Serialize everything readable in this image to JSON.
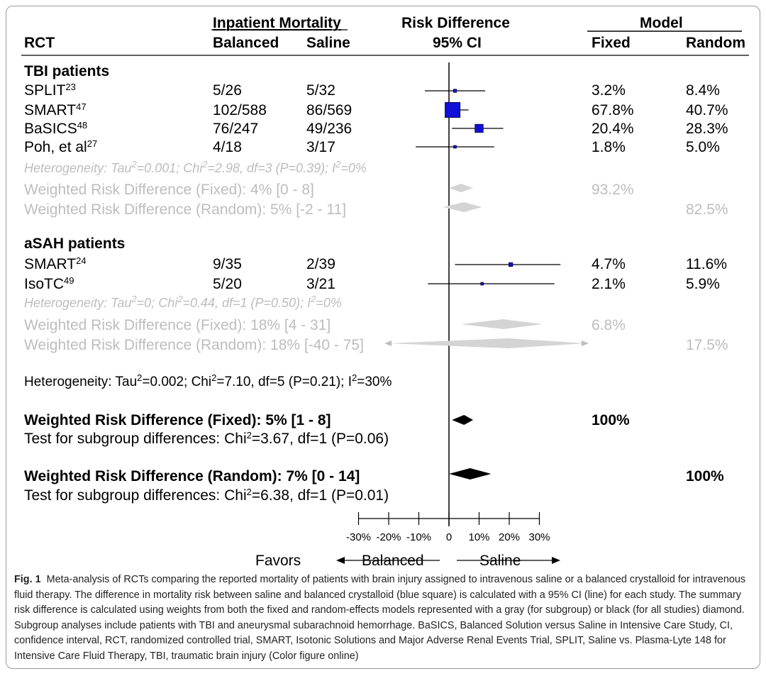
{
  "header": {
    "group_left": "Inpatient Mortality",
    "group_mid": "Risk Difference",
    "group_right": "Model",
    "col_rct": "RCT",
    "col_balanced": "Balanced",
    "col_saline": "Saline",
    "col_ci": "95% CI",
    "col_fixed": "Fixed",
    "col_random": "Random"
  },
  "groups": [
    {
      "title": "TBI patients",
      "heterogeneity": {
        "pre": "Heterogeneity: Tau",
        "s1": "2",
        "m1": "=0.001; Chi",
        "s2": "2",
        "m2": "=2.98, df=3 (P=0.39); I",
        "s3": "2",
        "end": "=0%"
      },
      "fixed_label": "Weighted Risk Difference (Fixed): 4% [0 - 8]",
      "fixed_weight": "93.2%",
      "random_label": "Weighted Risk Difference (Random): 5% [-2 - 11]",
      "random_weight": "82.5%"
    },
    {
      "title": "aSAH patients",
      "heterogeneity": {
        "pre": "Heterogeneity: Tau",
        "s1": "2",
        "m1": "=0; Chi",
        "s2": "2",
        "m2": "=0.44, df=1 (P=0.50); I",
        "s3": "2",
        "end": "=0%"
      },
      "fixed_label": "Weighted Risk Difference (Fixed): 18% [4 - 31]",
      "fixed_weight": "6.8%",
      "random_label": "Weighted Risk Difference (Random): 18% [-40 - 75]",
      "random_weight": "17.5%"
    }
  ],
  "studies": [
    {
      "name": "SPLIT",
      "ref": "23",
      "balanced": "5/26",
      "saline": "5/32",
      "fixed": "3.2%",
      "random": "8.4%"
    },
    {
      "name": "SMART",
      "ref": "47",
      "balanced": "102/588",
      "saline": "86/569",
      "fixed": "67.8%",
      "random": "40.7%"
    },
    {
      "name": "BaSICS",
      "ref": "48",
      "balanced": "76/247",
      "saline": "49/236",
      "fixed": "20.4%",
      "random": "28.3%"
    },
    {
      "name": "Poh, et al",
      "ref": "27",
      "balanced": "4/18",
      "saline": "3/17",
      "fixed": "1.8%",
      "random": "5.0%"
    },
    {
      "name": "SMART",
      "ref": "24",
      "balanced": "9/35",
      "saline": "2/39",
      "fixed": "4.7%",
      "random": "11.6%"
    },
    {
      "name": "IsoTC",
      "ref": "49",
      "balanced": "5/20",
      "saline": "3/21",
      "fixed": "2.1%",
      "random": "5.9%"
    }
  ],
  "overall": {
    "heterogeneity": {
      "pre": "Heterogeneity: Tau",
      "s1": "2",
      "m1": "=0.002; Chi",
      "s2": "2",
      "m2": "=7.10, df=5 (P=0.21); I",
      "s3": "2",
      "end": "=30%"
    },
    "fixed_label": "Weighted Risk Difference (Fixed): 5% [1 - 8]",
    "fixed_weight": "100%",
    "fixed_test": {
      "pre": "Test for subgroup differences: Chi",
      "sup": "2",
      "end": "=3.67, df=1 (P=0.06)"
    },
    "random_label": "Weighted Risk Difference (Random): 7% [0 - 14]",
    "random_weight": "100%",
    "random_test": {
      "pre": "Test for subgroup differences: Chi",
      "sup": "2",
      "end": "=6.38, df=1 (P=0.01)"
    }
  },
  "axis": {
    "favors": "Favors",
    "left": "Balanced",
    "right": "Saline"
  },
  "chart_data": {
    "type": "forest",
    "x_ticks": [
      -30,
      -20,
      -10,
      0,
      10,
      20,
      30
    ],
    "x_tick_labels": [
      "-30%",
      "-20%",
      "-10%",
      "0",
      "10%",
      "20%",
      "30%"
    ],
    "xlim": [
      -30,
      30
    ],
    "unit": "%",
    "marker_color": "#1010d8",
    "study_points": [
      {
        "est": 2,
        "lo": -8,
        "hi": 12,
        "weight_fixed": 3.2
      },
      {
        "est": 1.2,
        "lo": -1.2,
        "hi": 6.5,
        "weight_fixed": 67.8
      },
      {
        "est": 10,
        "lo": 1,
        "hi": 18,
        "weight_fixed": 20.4
      },
      {
        "est": 2,
        "lo": -11,
        "hi": 15,
        "weight_fixed": 1.8
      },
      {
        "est": 20.5,
        "lo": 2,
        "hi": 37,
        "weight_fixed": 4.7
      },
      {
        "est": 11,
        "lo": -7,
        "hi": 35,
        "weight_fixed": 2.1
      }
    ],
    "diamonds": [
      {
        "est": 4,
        "lo": 0,
        "hi": 8,
        "color": "#d4d4d4"
      },
      {
        "est": 5,
        "lo": -2,
        "hi": 11,
        "color": "#d4d4d4"
      },
      {
        "est": 18,
        "lo": 4,
        "hi": 31,
        "color": "#d4d4d4"
      },
      {
        "est": 18,
        "lo": -40,
        "hi": 75,
        "color": "#d4d4d4",
        "clipped": true
      },
      {
        "est": 5,
        "lo": 1,
        "hi": 8,
        "color": "#000000"
      },
      {
        "est": 7,
        "lo": 0,
        "hi": 14,
        "color": "#000000"
      }
    ]
  },
  "caption": {
    "label": "Fig. 1",
    "text": "Meta-analysis of RCTs comparing the reported mortality of patients with brain injury assigned to intravenous saline or a balanced crystalloid for intravenous fluid therapy. The difference in mortality risk between saline and balanced crystalloid (blue square) is calculated with a 95% CI (line) for each study. The summary risk difference is calculated using weights from both the fixed and random-effects models represented with a gray (for subgroup) or black (for all studies) diamond. Subgroup analyses include patients with TBI and aneurysmal subarachnoid hemorrhage. BaSICS, Balanced Solution versus Saline in Intensive Care Study, CI, confidence interval, RCT, randomized controlled trial, SMART, Isotonic Solutions and Major Adverse Renal Events Trial, SPLIT, Saline vs. Plasma-Lyte 148 for Intensive Care Fluid Therapy, TBI, traumatic brain injury (Color figure online)"
  }
}
